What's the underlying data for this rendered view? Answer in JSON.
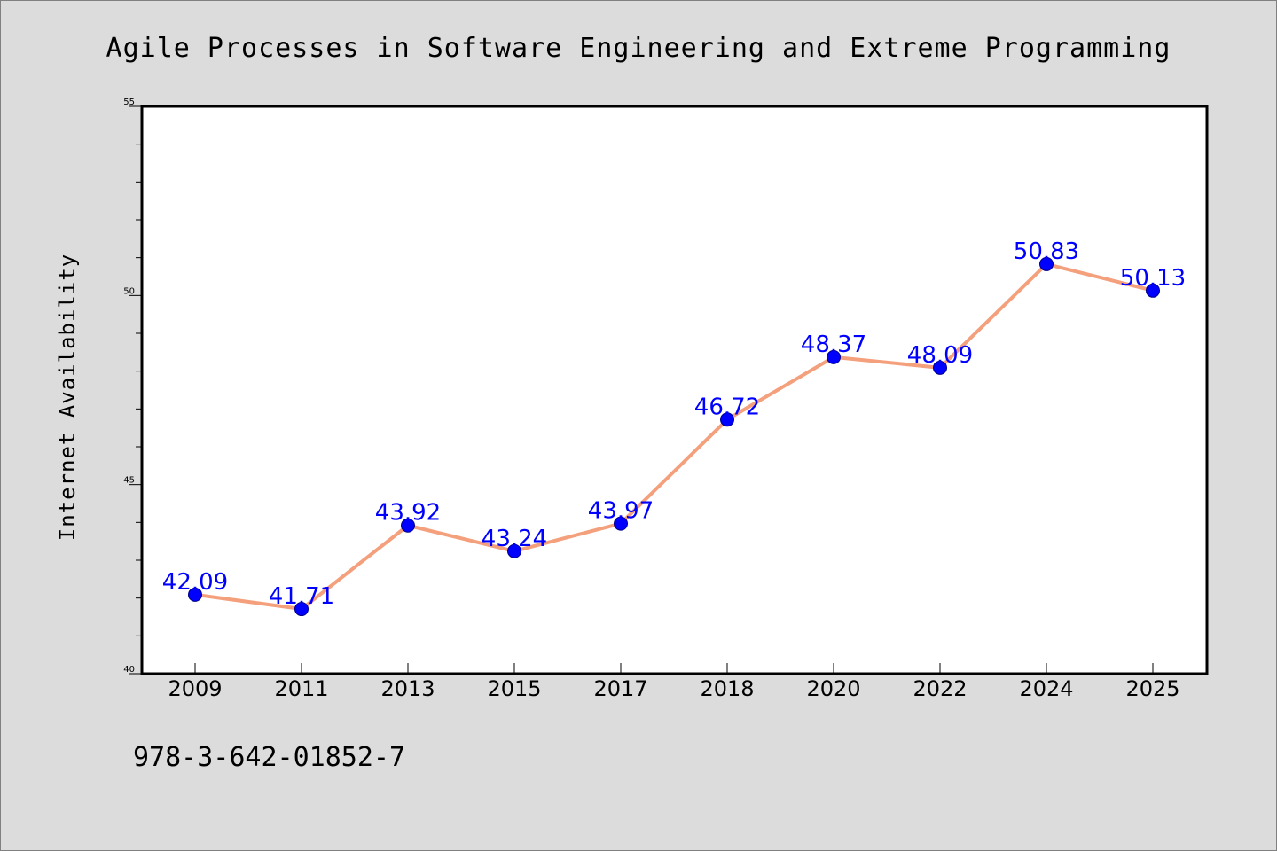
{
  "chart_data": {
    "type": "line",
    "title": "Agile Processes in Software Engineering and Extreme Programming",
    "xlabel": "",
    "ylabel": "Internet Availability",
    "categories": [
      "2009",
      "2011",
      "2013",
      "2015",
      "2017",
      "2018",
      "2020",
      "2022",
      "2024",
      "2025"
    ],
    "values": [
      42.09,
      41.71,
      43.92,
      43.24,
      43.97,
      46.72,
      48.37,
      48.09,
      50.83,
      50.13
    ],
    "data_labels": [
      "42.09",
      "41.71",
      "43.92",
      "43.24",
      "43.97",
      "46.72",
      "48.37",
      "48.09",
      "50.83",
      "50.13"
    ],
    "ylim": [
      40,
      55
    ],
    "yticks": [
      "40",
      "45",
      "50",
      "55"
    ],
    "grid": false,
    "legend": "none",
    "colors": {
      "line": "#f4a07c",
      "marker": "#0000ff",
      "label": "#0000ff",
      "background": "#dcdcdc",
      "plot_bg": "#ffffff"
    }
  },
  "footnote": "978-3-642-01852-7"
}
